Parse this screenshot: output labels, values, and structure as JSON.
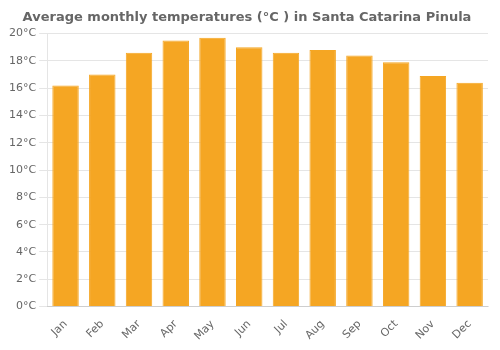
{
  "chart_data": {
    "type": "bar",
    "title": "Average monthly temperatures (°C ) in Santa Catarina Pinula",
    "categories": [
      "Jan",
      "Feb",
      "Mar",
      "Apr",
      "May",
      "Jun",
      "Jul",
      "Aug",
      "Sep",
      "Oct",
      "Nov",
      "Dec"
    ],
    "values": [
      16.2,
      17.0,
      18.6,
      19.5,
      19.7,
      19.0,
      18.6,
      18.8,
      18.4,
      17.9,
      16.9,
      16.4
    ],
    "color": "#F5A623",
    "ylim": [
      0,
      20
    ],
    "yticks": [
      {
        "value": 0,
        "label": "0°C"
      },
      {
        "value": 2,
        "label": "2°C"
      },
      {
        "value": 4,
        "label": "4°C"
      },
      {
        "value": 6,
        "label": "6°C"
      },
      {
        "value": 8,
        "label": "8°C"
      },
      {
        "value": 10,
        "label": "10°C"
      },
      {
        "value": 12,
        "label": "12°C"
      },
      {
        "value": 14,
        "label": "14°C"
      },
      {
        "value": 16,
        "label": "16°C"
      },
      {
        "value": 18,
        "label": "18°C"
      },
      {
        "value": 20,
        "label": "20°C"
      }
    ],
    "grid": true
  }
}
